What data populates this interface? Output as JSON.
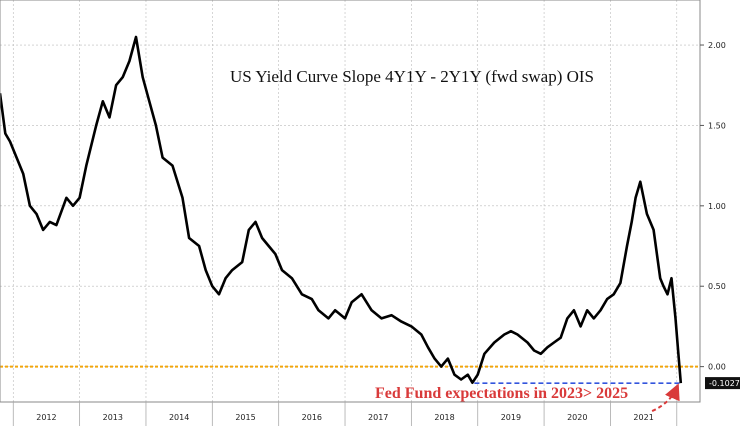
{
  "chart_data": {
    "type": "line",
    "title": "US Yield Curve Slope 4Y1Y - 2Y1Y (fwd swap) OIS",
    "xlabel": "",
    "ylabel": "",
    "x_range": [
      2011.3,
      2021.85
    ],
    "ylim": [
      -0.22,
      2.28
    ],
    "y_ticks": [
      "2.00",
      "1.50",
      "1.00",
      "0.50",
      "0.00"
    ],
    "y_tick_values": [
      2.0,
      1.5,
      1.0,
      0.5,
      0.0
    ],
    "x_ticks": [
      "2012",
      "2013",
      "2014",
      "2015",
      "2016",
      "2017",
      "2018",
      "2019",
      "2020",
      "2021"
    ],
    "x_tick_centers": [
      2012.0,
      2013.0,
      2014.0,
      2015.0,
      2016.0,
      2017.0,
      2018.0,
      2019.0,
      2020.0,
      2021.0
    ],
    "x_tick_boundaries": [
      2011.5,
      2012.5,
      2013.5,
      2014.5,
      2015.5,
      2016.5,
      2017.5,
      2018.5,
      2019.5,
      2020.5,
      2021.5
    ],
    "series": [
      {
        "color": "#000000",
        "x": [
          2011.3,
          2011.38,
          2011.45,
          2011.55,
          2011.65,
          2011.75,
          2011.85,
          2011.95,
          2012.05,
          2012.15,
          2012.3,
          2012.4,
          2012.5,
          2012.6,
          2012.75,
          2012.85,
          2012.95,
          2013.05,
          2013.15,
          2013.25,
          2013.35,
          2013.45,
          2013.55,
          2013.65,
          2013.75,
          2013.9,
          2014.05,
          2014.15,
          2014.3,
          2014.4,
          2014.5,
          2014.6,
          2014.7,
          2014.8,
          2014.95,
          2015.05,
          2015.15,
          2015.25,
          2015.35,
          2015.45,
          2015.55,
          2015.7,
          2015.85,
          2016.0,
          2016.1,
          2016.25,
          2016.35,
          2016.5,
          2016.6,
          2016.75,
          2016.9,
          2017.05,
          2017.2,
          2017.35,
          2017.5,
          2017.65,
          2017.75,
          2017.85,
          2017.95,
          2018.05,
          2018.15,
          2018.25,
          2018.35,
          2018.42,
          2018.5,
          2018.6,
          2018.75,
          2018.9,
          2019.0,
          2019.1,
          2019.25,
          2019.35,
          2019.45,
          2019.55,
          2019.65,
          2019.75,
          2019.85,
          2019.95,
          2020.05,
          2020.15,
          2020.25,
          2020.35,
          2020.45,
          2020.55,
          2020.65,
          2020.75,
          2020.82,
          2020.88,
          2020.95,
          2021.05,
          2021.15,
          2021.25,
          2021.3,
          2021.36,
          2021.42,
          2021.48,
          2021.52,
          2021.56
        ],
        "y": [
          1.7,
          1.45,
          1.4,
          1.3,
          1.2,
          1.0,
          0.95,
          0.85,
          0.9,
          0.88,
          1.05,
          1.0,
          1.05,
          1.25,
          1.5,
          1.65,
          1.55,
          1.75,
          1.8,
          1.9,
          2.05,
          1.8,
          1.65,
          1.5,
          1.3,
          1.25,
          1.05,
          0.8,
          0.75,
          0.6,
          0.5,
          0.45,
          0.55,
          0.6,
          0.65,
          0.85,
          0.9,
          0.8,
          0.75,
          0.7,
          0.6,
          0.55,
          0.45,
          0.42,
          0.35,
          0.3,
          0.35,
          0.3,
          0.4,
          0.45,
          0.35,
          0.3,
          0.32,
          0.28,
          0.25,
          0.2,
          0.12,
          0.05,
          0.0,
          0.05,
          -0.05,
          -0.08,
          -0.05,
          -0.1,
          -0.05,
          0.08,
          0.15,
          0.2,
          0.22,
          0.2,
          0.15,
          0.1,
          0.08,
          0.12,
          0.15,
          0.18,
          0.3,
          0.35,
          0.25,
          0.35,
          0.3,
          0.35,
          0.42,
          0.45,
          0.52,
          0.75,
          0.9,
          1.05,
          1.15,
          0.95,
          0.85,
          0.55,
          0.5,
          0.45,
          0.55,
          0.3,
          0.1,
          -0.1027
        ]
      }
    ],
    "reference_lines": [
      {
        "y": 0.0,
        "color": "#f2a60c",
        "style": "dashed"
      },
      {
        "y": -0.1027,
        "x_start": 2018.45,
        "x_end": 2021.55,
        "color": "#3355dd",
        "style": "dashed"
      }
    ],
    "last_value_label": "-0.1027",
    "annotation": {
      "text": "Fed Fund expectations in 2023> 2025",
      "color": "#d93a3a",
      "arrow_to_x": 2021.55,
      "arrow_to_y": -0.1027
    },
    "grid": true,
    "legend": "none"
  }
}
